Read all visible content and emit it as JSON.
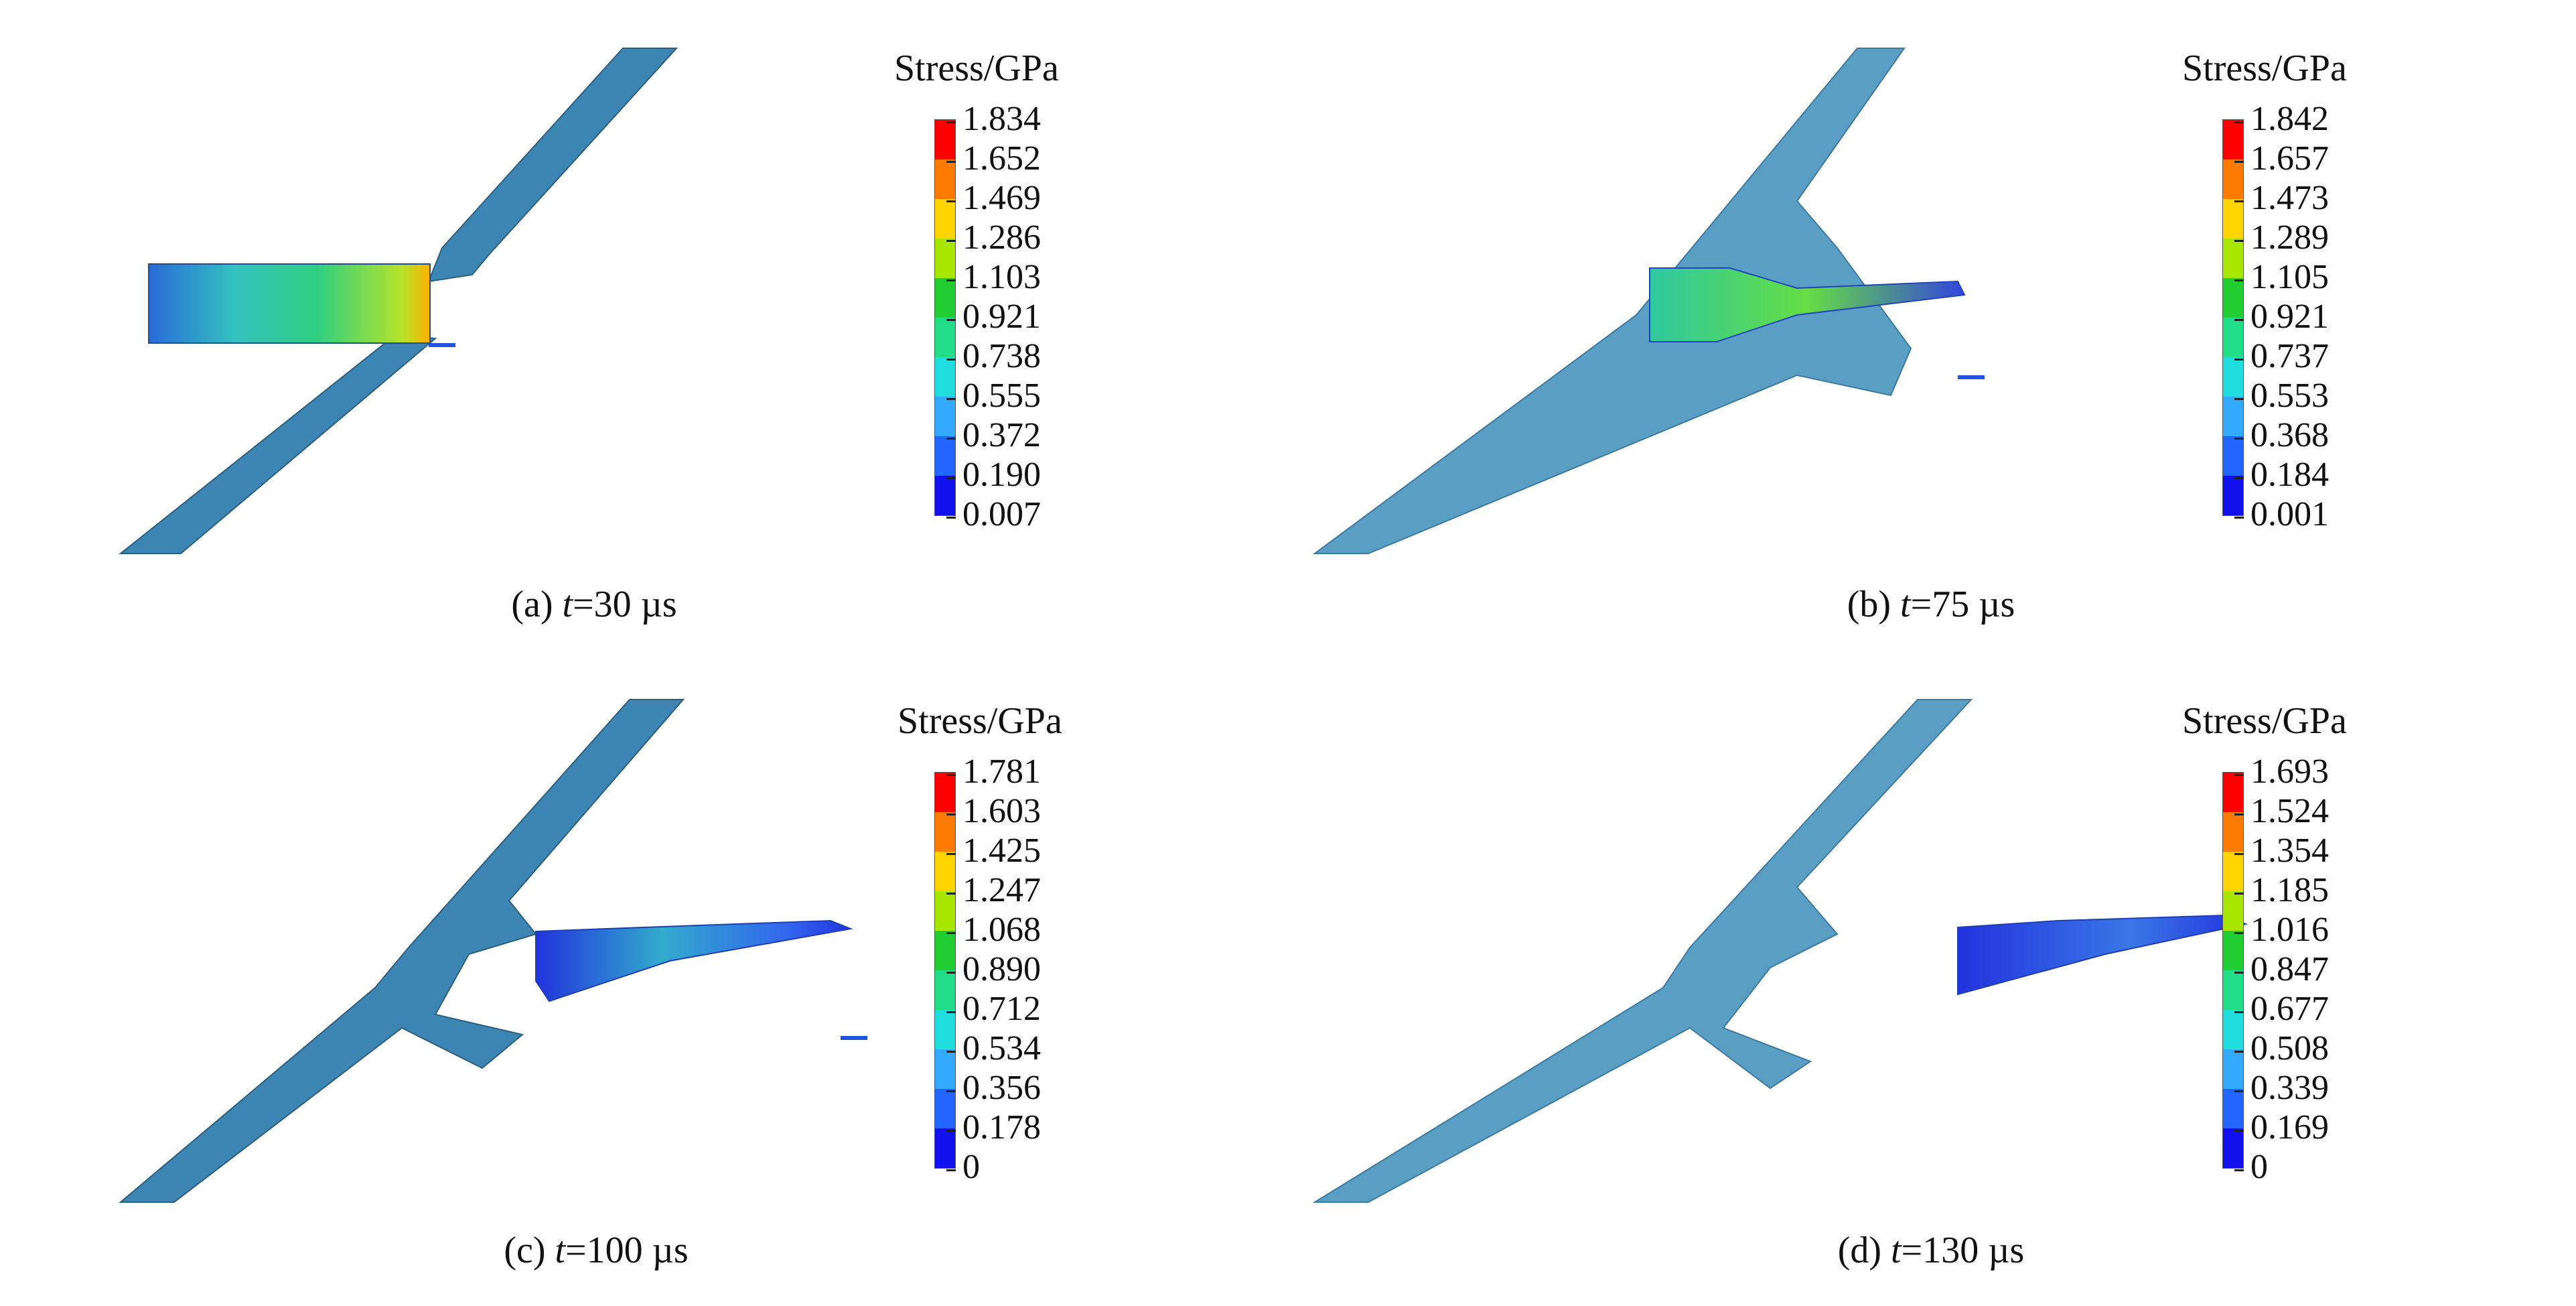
{
  "figure": {
    "panels": [
      {
        "id": "a",
        "caption_prefix": "(a)",
        "caption_var": "t",
        "caption_rest": "=30 µs",
        "colorbar": {
          "title": "Stress/GPa",
          "ticks": [
            "1.834",
            "1.652",
            "1.469",
            "1.286",
            "1.103",
            "0.921",
            "0.738",
            "0.555",
            "0.372",
            "0.190",
            "0.007"
          ]
        }
      },
      {
        "id": "b",
        "caption_prefix": "(b)",
        "caption_var": "t",
        "caption_rest": "=75 µs",
        "colorbar": {
          "title": "Stress/GPa",
          "ticks": [
            "1.842",
            "1.657",
            "1.473",
            "1.289",
            "1.105",
            "0.921",
            "0.737",
            "0.553",
            "0.368",
            "0.184",
            "0.001"
          ]
        }
      },
      {
        "id": "c",
        "caption_prefix": "(c)",
        "caption_var": "t",
        "caption_rest": "=100 µs",
        "colorbar": {
          "title": "Stress/GPa",
          "ticks": [
            "1.781",
            "1.603",
            "1.425",
            "1.247",
            "1.068",
            "0.890",
            "0.712",
            "0.534",
            "0.356",
            "0.178",
            "0"
          ]
        }
      },
      {
        "id": "d",
        "caption_prefix": "(d)",
        "caption_var": "t",
        "caption_rest": "=130 µs",
        "colorbar": {
          "title": "Stress/GPa",
          "ticks": [
            "1.693",
            "1.524",
            "1.354",
            "1.185",
            "1.016",
            "0.847",
            "0.677",
            "0.508",
            "0.339",
            "0.169",
            "0"
          ]
        }
      }
    ],
    "colorbar_colors": [
      "#ff0000",
      "#ff7a00",
      "#ffd400",
      "#a8e600",
      "#22cc33",
      "#22dd88",
      "#22dddd",
      "#33aaff",
      "#2266ff",
      "#1111ee"
    ],
    "plate_color": "#3d85b3",
    "plate_color_faded": "#5b9ec4"
  }
}
